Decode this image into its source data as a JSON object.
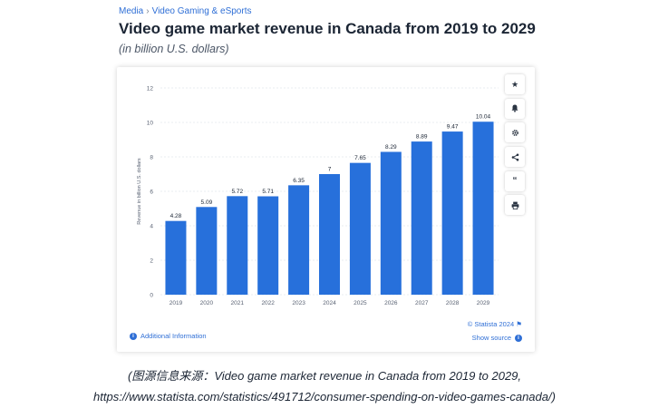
{
  "breadcrumb": {
    "parent": "Media",
    "separator": "›",
    "current": "Video Gaming & eSports"
  },
  "header": {
    "title": "Video game market revenue in Canada from 2019 to 2029",
    "subtitle": "(in billion U.S. dollars)"
  },
  "toolbar": {
    "icons": [
      "star-icon",
      "bell-icon",
      "gear-icon",
      "share-icon",
      "quote-icon",
      "print-icon"
    ]
  },
  "footer": {
    "info_label": "Additional Information",
    "copyright": "© Statista 2024",
    "source_label": "Show source"
  },
  "caption": {
    "line1": "(图源信息来源：Video game market revenue in Canada from 2019 to 2029,",
    "line2": "https://www.statista.com/statistics/491712/consumer-spending-on-video-games-canada/)"
  },
  "colors": {
    "bar": "#2770db",
    "link": "#2f6fd6"
  },
  "chart_data": {
    "type": "bar",
    "categories": [
      "2019",
      "2020",
      "2021",
      "2022",
      "2023",
      "2024",
      "2025",
      "2026",
      "2027",
      "2028",
      "2029"
    ],
    "values": [
      4.28,
      5.09,
      5.72,
      5.71,
      6.35,
      7,
      7.65,
      8.29,
      8.89,
      9.47,
      10.04
    ],
    "value_labels": [
      "4.28",
      "5.09",
      "5.72",
      "5.71",
      "6.35",
      "7",
      "7.65",
      "8.29",
      "8.89",
      "9.47",
      "10.04"
    ],
    "ylabel": "Revenue in billion U.S. dollars",
    "yticks": [
      "0",
      "2",
      "4",
      "6",
      "8",
      "10",
      "12"
    ],
    "ylim": [
      0,
      12
    ],
    "grid": true
  }
}
